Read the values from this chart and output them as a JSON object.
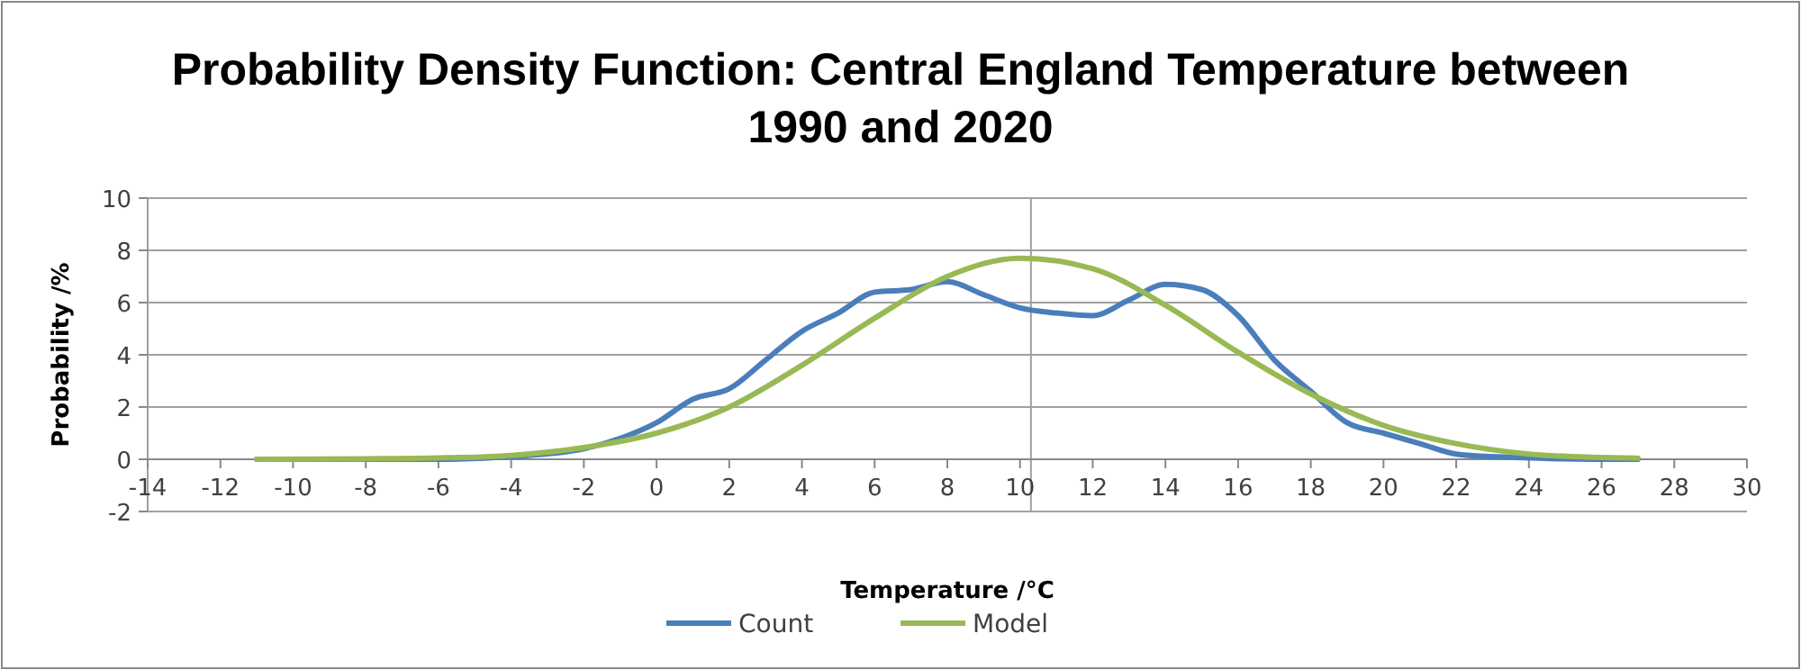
{
  "chart_data": {
    "type": "line",
    "title": "Probability Density Function: Central England Temperature between 1990 and 2020",
    "xlabel": "Temperature /°C",
    "ylabel": "Probability /%",
    "xlim": [
      -14,
      30
    ],
    "xticks": [
      -14,
      -12,
      -10,
      -8,
      -6,
      -4,
      -2,
      0,
      2,
      4,
      6,
      8,
      10,
      12,
      14,
      16,
      18,
      20,
      22,
      24,
      26,
      28,
      30
    ],
    "ylim": [
      -2,
      10
    ],
    "yticks": [
      -2,
      0,
      2,
      4,
      6,
      8,
      10
    ],
    "grid": "y",
    "legend": "bottom",
    "line_style": "solid",
    "marker": "none",
    "ref_lines": [
      {
        "axis": "x",
        "value": 10.3,
        "color": "#a0a0a0"
      }
    ],
    "series": [
      {
        "name": "Count",
        "color": "#4a7ebb",
        "x": [
          -11,
          -6,
          -4,
          -2,
          -1,
          0,
          1,
          2,
          3,
          4,
          5,
          6,
          7,
          8,
          9,
          10,
          11,
          12,
          13,
          14,
          15,
          16,
          17,
          18,
          19,
          20,
          21,
          22,
          23,
          24,
          26,
          27
        ],
        "values": [
          0,
          0,
          0.1,
          0.4,
          0.8,
          1.4,
          2.3,
          2.7,
          3.8,
          4.9,
          5.6,
          6.4,
          6.5,
          6.8,
          6.3,
          5.8,
          5.6,
          5.5,
          6.1,
          6.7,
          6.5,
          5.5,
          3.8,
          2.6,
          1.4,
          1.0,
          0.6,
          0.2,
          0.1,
          0.05,
          0,
          0
        ]
      },
      {
        "name": "Model",
        "color": "#98b954",
        "x": [
          -11,
          -8,
          -6,
          -4,
          -2,
          0,
          2,
          4,
          6,
          8,
          10,
          12,
          14,
          16,
          18,
          20,
          22,
          24,
          26,
          27
        ],
        "values": [
          0,
          0.02,
          0.05,
          0.15,
          0.45,
          1.0,
          2.0,
          3.6,
          5.4,
          7.0,
          7.7,
          7.3,
          5.9,
          4.1,
          2.5,
          1.3,
          0.6,
          0.2,
          0.07,
          0.04
        ]
      }
    ]
  }
}
